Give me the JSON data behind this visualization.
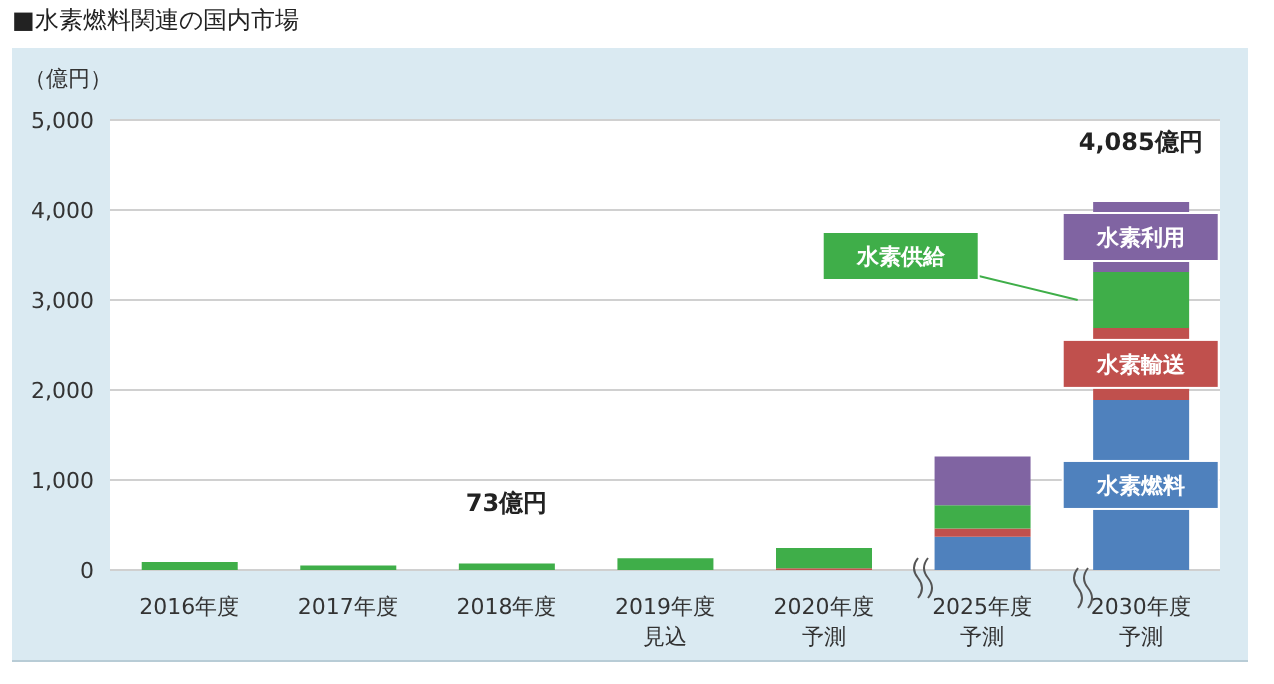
{
  "chart_data": {
    "type": "bar",
    "title": "■水素燃料関連の国内市場",
    "ylabel": "（億円）",
    "stacked": true,
    "legend": false,
    "grid": "y",
    "categories": [
      "2016年度",
      "2017年度",
      "2018年度",
      "2019年度見込",
      "2020年度予測",
      "2025年度予測",
      "2030年度予測"
    ],
    "series": [
      {
        "name": "水素燃料",
        "color": "#4f81bd",
        "values": [
          0,
          0,
          0,
          0,
          0,
          370,
          1890
        ]
      },
      {
        "name": "水素輸送",
        "color": "#c0504d",
        "values": [
          0,
          0,
          0,
          0,
          20,
          90,
          800
        ]
      },
      {
        "name": "水素供給",
        "color": "#3fae49",
        "values": [
          90,
          50,
          73,
          130,
          225,
          260,
          620
        ]
      },
      {
        "name": "水素利用",
        "color": "#8064a2",
        "values": [
          0,
          0,
          0,
          0,
          0,
          540,
          780
        ]
      }
    ],
    "ylim": [
      0,
      5000
    ],
    "yticks": [
      {
        "value": 0,
        "label": "0"
      },
      {
        "value": 1000,
        "label": "1,000"
      },
      {
        "value": 2000,
        "label": "2,000"
      },
      {
        "value": 3000,
        "label": "3,000"
      },
      {
        "value": 4000,
        "label": "4,000"
      },
      {
        "value": 5000,
        "label": "5,000"
      }
    ],
    "annotations": [
      {
        "text": "73億円",
        "x": "2018年度",
        "y": 73
      },
      {
        "text": "4,085億円",
        "x": "2030年度予測",
        "y": 4085
      }
    ]
  }
}
